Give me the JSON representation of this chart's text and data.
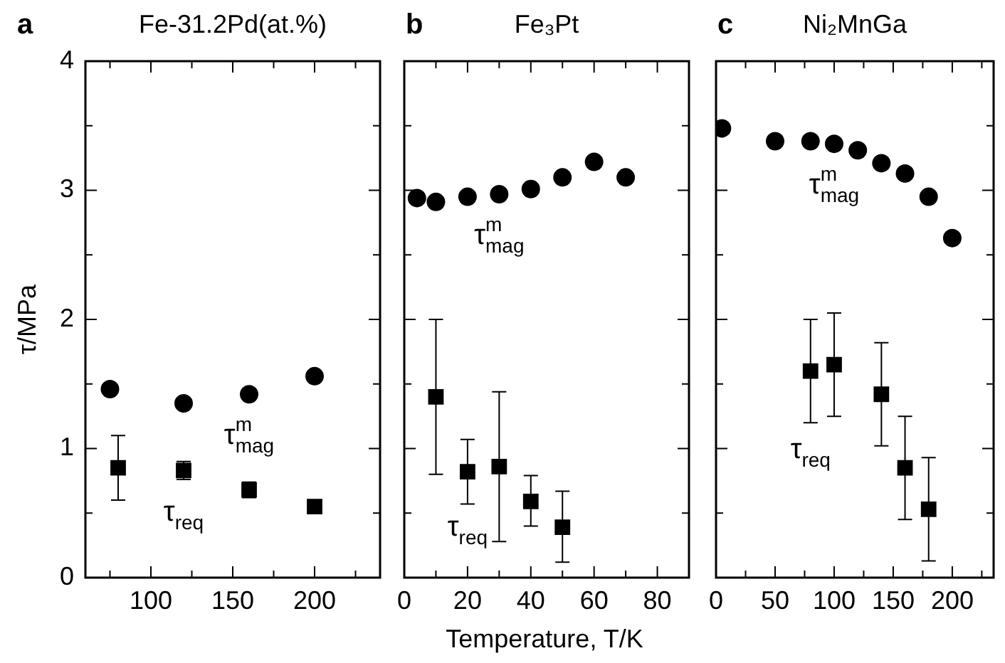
{
  "chart_data": [
    {
      "type": "scatter",
      "title": "Fe-31.2Pd(at.%)",
      "ylabel": "τ/MPa",
      "annotations": [
        "a"
      ],
      "grid": false,
      "legend": false,
      "xlim": [
        60,
        240
      ],
      "xticks": [
        {
          "value": 75,
          "label": null
        },
        100,
        {
          "value": 125,
          "label": null
        },
        150,
        {
          "value": 175,
          "label": null
        },
        200,
        {
          "value": 225,
          "label": null
        }
      ],
      "ylim": [
        0,
        4
      ],
      "yticks": [
        0,
        {
          "value": 0.5,
          "label": null
        },
        1,
        {
          "value": 1.5,
          "label": null
        },
        2,
        {
          "value": 2.5,
          "label": null
        },
        3,
        {
          "value": 3.5,
          "label": null
        },
        4
      ],
      "series": [
        {
          "name": "τ$^{m}$$_{mag}$",
          "color": "#000000",
          "marker": "circle",
          "x": [
            75,
            120,
            160,
            200
          ],
          "values": [
            1.46,
            1.35,
            1.42,
            1.56
          ]
        },
        {
          "name": "τ$_{req}$",
          "color": "#000000",
          "marker": "square",
          "x": [
            80,
            120,
            160,
            200
          ],
          "values": [
            0.85,
            0.83,
            0.68,
            0.55
          ],
          "errors": [
            [
              0.6,
              1.1
            ],
            [
              0.76,
              0.9
            ],
            [
              0.62,
              0.74
            ],
            null
          ]
        }
      ]
    },
    {
      "type": "scatter",
      "title": "Fe₃Pt",
      "xlabel": "Temperature, T/K",
      "annotations": [
        "b"
      ],
      "grid": false,
      "legend": false,
      "tick_labels": "x",
      "xlim": [
        0,
        90
      ],
      "xticks": [
        0,
        {
          "value": 10,
          "label": null
        },
        20,
        {
          "value": 30,
          "label": null
        },
        40,
        {
          "value": 50,
          "label": null
        },
        60,
        {
          "value": 70,
          "label": null
        },
        80
      ],
      "ylim": [
        0,
        4
      ],
      "yticks": [
        0,
        {
          "value": 0.5,
          "label": null
        },
        1,
        {
          "value": 1.5,
          "label": null
        },
        2,
        {
          "value": 2.5,
          "label": null
        },
        3,
        {
          "value": 3.5,
          "label": null
        },
        4
      ],
      "series": [
        {
          "name": "τ$^{m}$$_{mag}$",
          "color": "#000000",
          "marker": "circle",
          "x": [
            4,
            10,
            20,
            30,
            40,
            50,
            60,
            70
          ],
          "values": [
            2.94,
            2.91,
            2.95,
            2.97,
            3.01,
            3.1,
            3.22,
            3.1
          ]
        },
        {
          "name": "τ$_{req}$",
          "color": "#000000",
          "marker": "square",
          "x": [
            10,
            20,
            30,
            40,
            50
          ],
          "values": [
            1.4,
            0.82,
            0.86,
            0.59,
            0.39
          ],
          "errors": [
            [
              0.8,
              2.0
            ],
            [
              0.57,
              1.07
            ],
            [
              0.28,
              1.44
            ],
            [
              0.4,
              0.79
            ],
            [
              0.12,
              0.67
            ]
          ]
        }
      ]
    },
    {
      "type": "scatter",
      "title": "Ni₂MnGa",
      "annotations": [
        "c"
      ],
      "grid": false,
      "legend": false,
      "tick_labels": "x",
      "xlim": [
        0,
        235
      ],
      "xticks": [
        0,
        {
          "value": 25,
          "label": null
        },
        50,
        {
          "value": 75,
          "label": null
        },
        100,
        {
          "value": 125,
          "label": null
        },
        150,
        {
          "value": 175,
          "label": null
        },
        200,
        {
          "value": 225,
          "label": null
        }
      ],
      "ylim": [
        0,
        4
      ],
      "yticks": [
        0,
        {
          "value": 0.5,
          "label": null
        },
        1,
        {
          "value": 1.5,
          "label": null
        },
        2,
        {
          "value": 2.5,
          "label": null
        },
        3,
        {
          "value": 3.5,
          "label": null
        },
        4
      ],
      "series": [
        {
          "name": "τ$^{m}$$_{mag}$",
          "color": "#000000",
          "marker": "circle",
          "x": [
            5,
            50,
            80,
            100,
            120,
            140,
            160,
            180,
            200
          ],
          "values": [
            3.48,
            3.38,
            3.38,
            3.36,
            3.31,
            3.21,
            3.13,
            2.95,
            2.63
          ]
        },
        {
          "name": "τ$_{req}$",
          "color": "#000000",
          "marker": "square",
          "x": [
            80,
            100,
            140,
            160,
            180
          ],
          "values": [
            1.6,
            1.65,
            1.42,
            0.85,
            0.53
          ],
          "errors": [
            [
              1.2,
              2.0
            ],
            [
              1.25,
              2.05
            ],
            [
              1.02,
              1.82
            ],
            [
              0.45,
              1.25
            ],
            [
              0.13,
              0.93
            ]
          ]
        }
      ]
    }
  ]
}
